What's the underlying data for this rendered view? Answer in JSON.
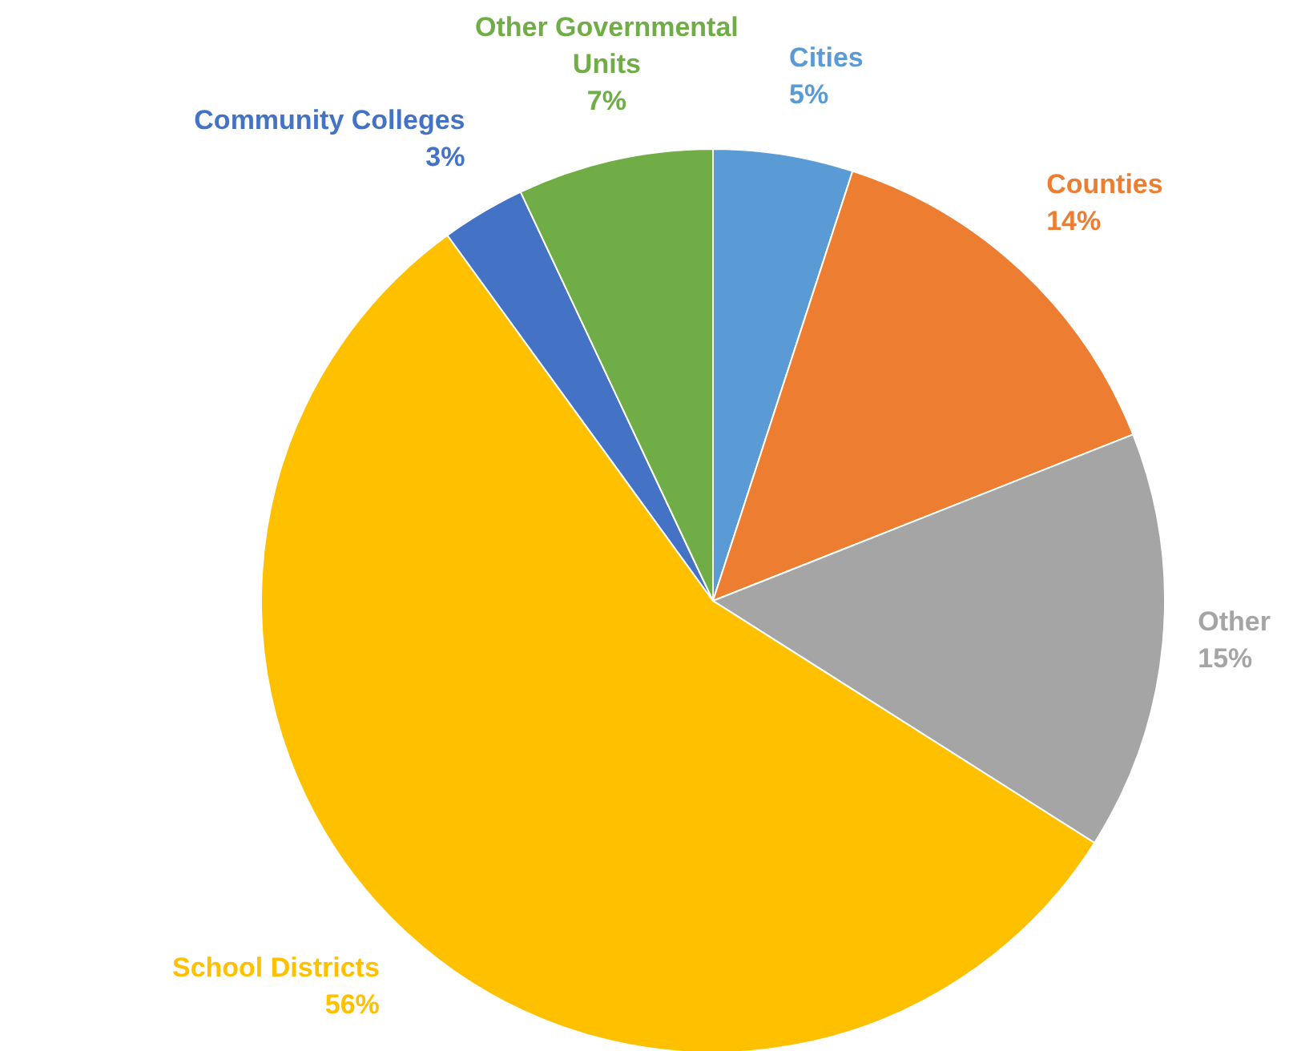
{
  "chart_data": {
    "type": "pie",
    "categories": [
      "Cities",
      "Counties",
      "Other",
      "School Districts",
      "Community Colleges",
      "Other Governmental Units"
    ],
    "values": [
      5,
      14,
      15,
      56,
      3,
      7
    ],
    "value_labels": [
      "5%",
      "14%",
      "15%",
      "56%",
      "3%",
      "7%"
    ],
    "colors": [
      "#5b9bd5",
      "#ed7d31",
      "#a5a5a5",
      "#ffc000",
      "#4472c4",
      "#70ad47"
    ]
  }
}
